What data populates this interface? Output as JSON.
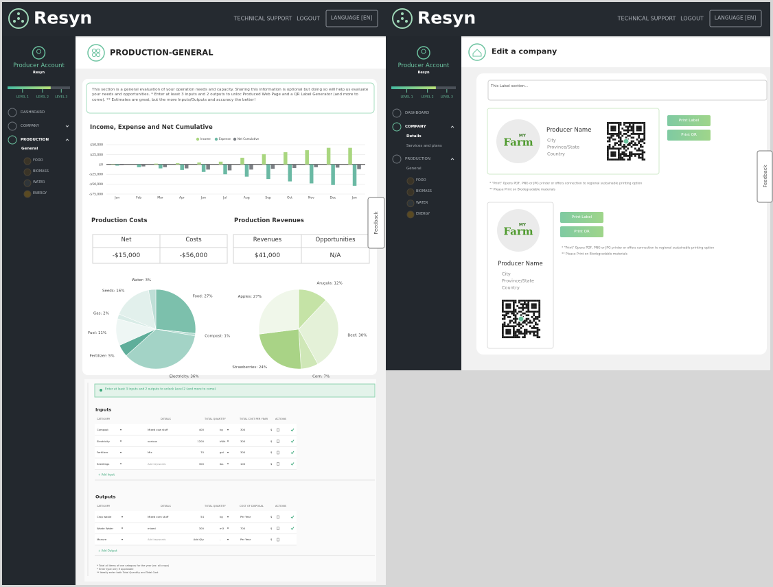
{
  "left": {
    "header": {
      "brand": "Resyn",
      "links": [
        "TECHNICAL SUPPORT",
        "LOGOUT"
      ],
      "language": "LANGUAGE [EN]"
    },
    "sidebar": {
      "account": "Producer Account",
      "org": "Resyn",
      "levels": [
        "LEVEL 1",
        "LEVEL 2",
        "LEVEL 3"
      ],
      "menu": [
        "DASHBOARD",
        "COMPANY",
        "PRODUCTION"
      ],
      "production_sub": [
        "General"
      ],
      "categories": [
        "FOOD",
        "BIOMASS",
        "WATER",
        "ENERGY"
      ]
    },
    "page_title": "PRODUCTION-GENERAL",
    "intro": "This section is a general evaluation of your operation needs and capacity. Sharing this information is optional but doing so will help us evaluate your needs and opportunities. * Enter at least 3 inputs and 2 outputs to unloc Produced Web Page and a QR Label Generator (and more to come). ** Estimates are great, but the more Inputs/Outputs and accuracy the better!",
    "income_chart": {
      "type": "bar",
      "title": "Income, Expense and Net Cumulative",
      "categories": [
        "Jan",
        "Feb",
        "Mar",
        "Apr",
        "Jun",
        "Jul",
        "Aug",
        "Sep",
        "Oct",
        "Nov",
        "Dec",
        "Jan"
      ],
      "series": [
        {
          "name": "Income",
          "color": "#a9d67f",
          "values": [
            -1000,
            0,
            2000,
            3000,
            5000,
            7000,
            17000,
            26000,
            31000,
            36000,
            42000,
            42000
          ]
        },
        {
          "name": "Expense",
          "color": "#6bb9a4",
          "values": [
            -3000,
            -7000,
            -10000,
            -14000,
            -19000,
            -25000,
            -31000,
            -37000,
            -43000,
            -48000,
            -52000,
            -54000
          ]
        },
        {
          "name": "Net Cumulative",
          "color": "#7b7f84",
          "values": [
            -2000,
            -5000,
            -7000,
            -10000,
            -13000,
            -15000,
            -13000,
            -11000,
            -9000,
            -7000,
            -8000,
            -12000
          ]
        }
      ],
      "ylim": [
        -75000,
        50000
      ],
      "yticks": [
        {
          "value": 50000,
          "label": "$50,000"
        },
        {
          "value": 25000,
          "label": "$25,000"
        },
        {
          "value": 0,
          "label": "$0"
        },
        {
          "value": -25000,
          "label": "-$25,000"
        },
        {
          "value": -50000,
          "label": "-$50,000"
        },
        {
          "value": -75000,
          "label": "-$75,000"
        }
      ],
      "grid": true
    },
    "costs": {
      "title": "Production Costs",
      "headers": [
        "Net",
        "Costs"
      ],
      "values": [
        "-$15,000",
        "-$56,000"
      ]
    },
    "revenues": {
      "title": "Production Revenues",
      "headers": [
        "Revenues",
        "Opportunities"
      ],
      "values": [
        "$41,000",
        "N/A"
      ]
    },
    "inputs_pie": {
      "type": "pie",
      "slices": [
        {
          "label": "Food: 27%",
          "value": 27,
          "color": "#7cc0ac"
        },
        {
          "label": "Compost: 1%",
          "value": 1,
          "color": "#b6dcd2"
        },
        {
          "label": "Electricity: 36%",
          "value": 36,
          "color": "#a3d3c6"
        },
        {
          "label": "Fertilizer: 5%",
          "value": 5,
          "color": "#5fae9a"
        },
        {
          "label": "Fuel: 11%",
          "value": 11,
          "color": "#eef6f4"
        },
        {
          "label": "Gas: 2%",
          "value": 2,
          "color": "#d9ece7"
        },
        {
          "label": "Seeds: 16%",
          "value": 16,
          "color": "#e2f0ec"
        },
        {
          "label": "Water: 3%",
          "value": 3,
          "color": "#bfdfd7"
        }
      ]
    },
    "outputs_pie": {
      "type": "pie",
      "slices": [
        {
          "label": "Arugula: 12%",
          "value": 12,
          "color": "#c5e3a6"
        },
        {
          "label": "Beef: 30%",
          "value": 30,
          "color": "#e4f1d8"
        },
        {
          "label": "Corn: 7%",
          "value": 7,
          "color": "#cfe7b7"
        },
        {
          "label": "Strawberries: 24%",
          "value": 24,
          "color": "#a9d386"
        },
        {
          "label": "Apples: 27%",
          "value": 27,
          "color": "#f0f7ea"
        }
      ]
    },
    "alert": "Enter at least 3 inputs and 2 outputs to unlock Level 2 (and more to come)",
    "inputs": {
      "title": "Inputs",
      "headers": [
        "CATEGORY",
        "DETAILS",
        "TOTAL QUANTITY",
        "TOTAL COST PER YEAR",
        "ACTIONS"
      ],
      "rows": [
        [
          "Compost",
          "Mixed cow stuff",
          "400",
          "kg",
          "300",
          "$"
        ],
        [
          "Electricity",
          "various",
          "1200",
          "kWh",
          "300",
          "$"
        ],
        [
          "Fertilizer",
          "Mix",
          "70",
          "gal",
          "300",
          "$"
        ],
        [
          "Seedlings",
          "Add keywords",
          "300",
          "lbs",
          "100",
          "$"
        ]
      ],
      "add": "+ Add Input"
    },
    "outputs": {
      "title": "Outputs",
      "headers": [
        "CATEGORY",
        "DETAILS",
        "TOTAL QUANTITY",
        "COST OF DISPOSAL",
        "ACTIONS"
      ],
      "rows": [
        [
          "Crop waste",
          "Mixed corn stuff",
          "54",
          "kg",
          "Per Year",
          "$"
        ],
        [
          "Waste Water",
          "mixed",
          "300",
          "m3",
          "700",
          "$"
        ],
        [
          "Manure",
          "Add keywords",
          "Add Qty",
          "-",
          "Per Year",
          "$"
        ]
      ],
      "add": "+ Add Output"
    },
    "footnotes": [
      "* Total all items of one category for the year (ex: all crops)",
      "* Enter type only if applicable",
      "** Ideally enter both Total Quantity and Total Cost"
    ],
    "feedback": "Feedback"
  },
  "right": {
    "header": {
      "brand": "Resyn",
      "links": [
        "TECHNICAL SUPPORT",
        "LOGOUT"
      ],
      "language": "LANGUAGE [EN]"
    },
    "sidebar": {
      "account": "Producer Account",
      "org": "Resyn",
      "levels": [
        "LEVEL 1",
        "LEVEL 2",
        "LEVEL 3"
      ],
      "menu": [
        "DASHBOARD",
        "COMPANY",
        "PRODUCTION"
      ],
      "company_sub": [
        "Details",
        "Services and plans"
      ],
      "production_sub": [
        "General"
      ],
      "categories": [
        "FOOD",
        "BIOMASS",
        "WATER",
        "ENERGY"
      ]
    },
    "page_title": "Edit a company",
    "label_input": "This Label section...",
    "cards": [
      {
        "logo": {
          "my": "MY",
          "farm": "Farm"
        },
        "name": "Producer Name",
        "city": "City",
        "province": "Province/State",
        "country": "Country",
        "buttons": [
          "Print Label",
          "Print QR"
        ],
        "notes": [
          "* \"Print\" Opens PDF, PNG or JPG printer or offers connection to regional sustainable printing option",
          "** Please Print on Biodegradable materials"
        ]
      },
      {
        "logo": {
          "my": "MY",
          "farm": "Farm"
        },
        "name": "Producer Name",
        "city": "City",
        "province": "Province/State",
        "country": "Country",
        "buttons": [
          "Print Label",
          "Print QR"
        ],
        "notes": [
          "* \"Print\" Opens PDF, PNG or JPG printer or offers connection to regional sustainable printing option",
          "** Please Print on Biodegradable materials"
        ]
      }
    ],
    "feedback": "Feedback"
  }
}
